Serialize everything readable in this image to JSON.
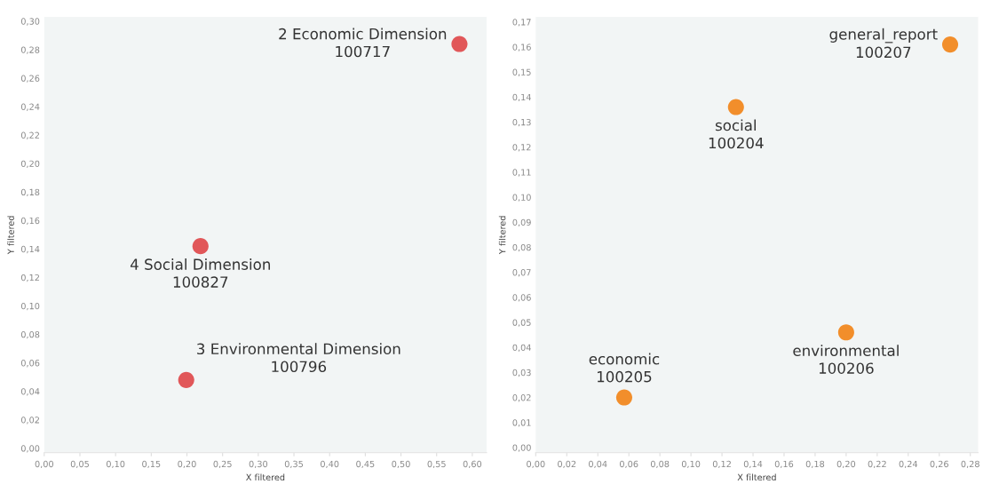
{
  "chart_data": [
    {
      "type": "scatter",
      "xlabel": "X filtered",
      "ylabel": "Y filtered",
      "marker": "circle",
      "grid": false,
      "x": [
        0.582,
        0.219,
        0.199
      ],
      "series": [
        {
          "color": "#e15759",
          "values": [
            0.284,
            0.142,
            0.048
          ]
        }
      ],
      "annotations": [
        {
          "text": "2 Economic Dimension\n100717",
          "x": 0.582,
          "y": 0.284
        },
        {
          "text": "4 Social Dimension\n100827",
          "x": 0.219,
          "y": 0.142
        },
        {
          "text": "3 Environmental Dimension\n100796",
          "x": 0.199,
          "y": 0.048
        }
      ],
      "xlim": [
        0,
        0.62
      ],
      "ylim": [
        -0.003,
        0.303
      ],
      "xticks": [
        {
          "value": 0,
          "label": "0,00"
        },
        {
          "value": 0.05,
          "label": "0,05"
        },
        {
          "value": 0.1,
          "label": "0,10"
        },
        {
          "value": 0.15,
          "label": "0,15"
        },
        {
          "value": 0.2,
          "label": "0,20"
        },
        {
          "value": 0.25,
          "label": "0,25"
        },
        {
          "value": 0.3,
          "label": "0,30"
        },
        {
          "value": 0.35,
          "label": "0,35"
        },
        {
          "value": 0.4,
          "label": "0,40"
        },
        {
          "value": 0.45,
          "label": "0,45"
        },
        {
          "value": 0.5,
          "label": "0,50"
        },
        {
          "value": 0.55,
          "label": "0,55"
        },
        {
          "value": 0.6,
          "label": "0,60"
        }
      ],
      "yticks": [
        {
          "value": 0,
          "label": "0,00"
        },
        {
          "value": 0.02,
          "label": "0,02"
        },
        {
          "value": 0.04,
          "label": "0,04"
        },
        {
          "value": 0.06,
          "label": "0,06"
        },
        {
          "value": 0.08,
          "label": "0,08"
        },
        {
          "value": 0.1,
          "label": "0,10"
        },
        {
          "value": 0.12,
          "label": "0,12"
        },
        {
          "value": 0.14,
          "label": "0,14"
        },
        {
          "value": 0.16,
          "label": "0,16"
        },
        {
          "value": 0.18,
          "label": "0,18"
        },
        {
          "value": 0.2,
          "label": "0,20"
        },
        {
          "value": 0.22,
          "label": "0,22"
        },
        {
          "value": 0.24,
          "label": "0,24"
        },
        {
          "value": 0.26,
          "label": "0,26"
        },
        {
          "value": 0.28,
          "label": "0,28"
        },
        {
          "value": 0.3,
          "label": "0,30"
        }
      ]
    },
    {
      "type": "scatter",
      "xlabel": "X filtered",
      "ylabel": "Y filtered",
      "marker": "circle",
      "grid": false,
      "x": [
        0.267,
        0.129,
        0.057,
        0.2
      ],
      "series": [
        {
          "color": "#f28e2b",
          "values": [
            0.161,
            0.136,
            0.02,
            0.046
          ]
        }
      ],
      "annotations": [
        {
          "text": "general_report\n100207",
          "x": 0.267,
          "y": 0.161
        },
        {
          "text": "social\n100204",
          "x": 0.129,
          "y": 0.136
        },
        {
          "text": "economic\n100205",
          "x": 0.057,
          "y": 0.02
        },
        {
          "text": "environmental\n100206",
          "x": 0.2,
          "y": 0.046
        }
      ],
      "xlim": [
        0,
        0.285
      ],
      "ylim": [
        -0.002,
        0.172
      ],
      "xticks": [
        {
          "value": 0,
          "label": "0,00"
        },
        {
          "value": 0.02,
          "label": "0,02"
        },
        {
          "value": 0.04,
          "label": "0,04"
        },
        {
          "value": 0.06,
          "label": "0,06"
        },
        {
          "value": 0.08,
          "label": "0,08"
        },
        {
          "value": 0.1,
          "label": "0,10"
        },
        {
          "value": 0.12,
          "label": "0,12"
        },
        {
          "value": 0.14,
          "label": "0,14"
        },
        {
          "value": 0.16,
          "label": "0,16"
        },
        {
          "value": 0.18,
          "label": "0,18"
        },
        {
          "value": 0.2,
          "label": "0,20"
        },
        {
          "value": 0.22,
          "label": "0,22"
        },
        {
          "value": 0.24,
          "label": "0,24"
        },
        {
          "value": 0.26,
          "label": "0,26"
        },
        {
          "value": 0.28,
          "label": "0,28"
        }
      ],
      "yticks": [
        {
          "value": 0,
          "label": "0,00"
        },
        {
          "value": 0.01,
          "label": "0,01"
        },
        {
          "value": 0.02,
          "label": "0,02"
        },
        {
          "value": 0.03,
          "label": "0,03"
        },
        {
          "value": 0.04,
          "label": "0,04"
        },
        {
          "value": 0.05,
          "label": "0,05"
        },
        {
          "value": 0.06,
          "label": "0,06"
        },
        {
          "value": 0.07,
          "label": "0,07"
        },
        {
          "value": 0.08,
          "label": "0,08"
        },
        {
          "value": 0.09,
          "label": "0,09"
        },
        {
          "value": 0.1,
          "label": "0,10"
        },
        {
          "value": 0.11,
          "label": "0,11"
        },
        {
          "value": 0.12,
          "label": "0,12"
        },
        {
          "value": 0.13,
          "label": "0,13"
        },
        {
          "value": 0.14,
          "label": "0,14"
        },
        {
          "value": 0.15,
          "label": "0,15"
        },
        {
          "value": 0.16,
          "label": "0,16"
        },
        {
          "value": 0.17,
          "label": "0,17"
        }
      ]
    }
  ]
}
